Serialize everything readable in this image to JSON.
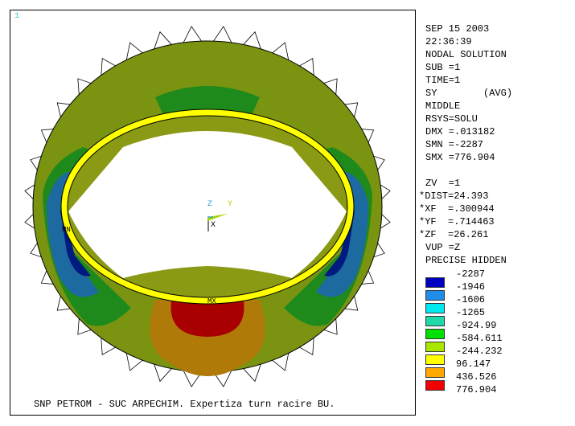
{
  "window_number": "1",
  "caption": "SNP PETROM - SUC ARPECHIM. Expertiza turn racire BU.",
  "info": {
    "date": "SEP 15 2003",
    "time": "22:36:39",
    "solution": "NODAL SOLUTION",
    "sub": "SUB =1",
    "time_step": "TIME=1",
    "item": "SY        (AVG)",
    "layer": "MIDDLE",
    "rsys": "RSYS=SOLU",
    "dmx": "DMX =.013182",
    "smn": "SMN =-2287",
    "smx": "SMX =776.904",
    "zv": "ZV  =1",
    "dist": "*DIST=24.393",
    "xf": "*XF  =.300944",
    "yf": "*YF  =.714463",
    "zf": "*ZF  =26.261",
    "vup": "VUP =Z",
    "hidden": "PRECISE HIDDEN"
  },
  "legend": {
    "labels": [
      "-2287",
      "-1946",
      "-1606",
      "-1265",
      "-924.99",
      "-584.611",
      "-244.232",
      "96.147",
      "436.526",
      "776.904"
    ],
    "colors": [
      "#0000c0",
      "#1e8ee8",
      "#00e8f0",
      "#20d8a8",
      "#00e000",
      "#a8e800",
      "#ffff00",
      "#ffa800",
      "#f00000"
    ]
  },
  "triad": {
    "z": "Z",
    "y": "Y",
    "x": "X"
  },
  "markers": {
    "mn": "MN",
    "mx": "MX"
  },
  "model_colors": {
    "olive": "#7a9412",
    "dark_green": "#1f8a1c",
    "blue": "#1c6aa0",
    "navy": "#001a80",
    "red": "#a80000",
    "orange": "#b07a08",
    "ring": "#ffff00"
  }
}
